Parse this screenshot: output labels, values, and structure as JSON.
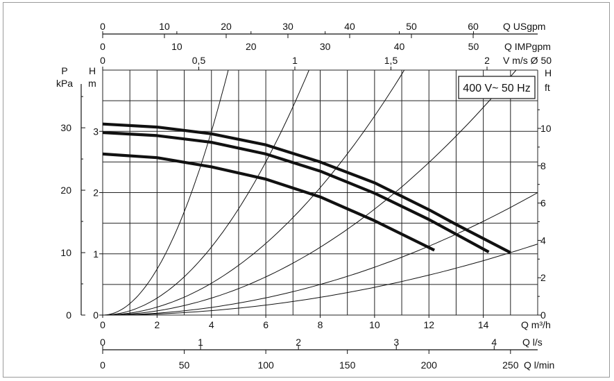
{
  "chart_data": {
    "type": "line",
    "title": "",
    "annotation": "400 V~ 50 Hz",
    "x_main": {
      "label": "Q m³/h",
      "range": [
        0,
        16
      ],
      "ticks": [
        0,
        2,
        4,
        6,
        8,
        10,
        12,
        14
      ]
    },
    "x_axes_bottom": [
      {
        "label": "Q l/s",
        "ticks": [
          0,
          1,
          2,
          3,
          4
        ]
      },
      {
        "label": "Q l/min",
        "ticks": [
          0,
          50,
          100,
          150,
          200,
          250
        ]
      }
    ],
    "x_axes_top": [
      {
        "label": "Q USgpm",
        "ticks": [
          0,
          10,
          20,
          30,
          40,
          50,
          60
        ]
      },
      {
        "label": "Q IMPgpm",
        "ticks": [
          0,
          10,
          20,
          30,
          40,
          50
        ]
      },
      {
        "label": "V m/s Ø 50",
        "ticks": [
          "0",
          "0,5",
          "1",
          "1,5",
          "2"
        ]
      }
    ],
    "y_main": {
      "label": "H",
      "unit": "m",
      "range": [
        0,
        4
      ],
      "ticks": [
        0,
        1,
        2,
        3
      ]
    },
    "y_pressure": {
      "label": "P",
      "unit": "kPa",
      "ticks": [
        0,
        10,
        20,
        30
      ]
    },
    "y_feet": {
      "label": "H",
      "unit": "ft",
      "ticks": [
        0,
        2,
        4,
        6,
        8,
        10
      ]
    },
    "grid": true,
    "series": [
      {
        "points": [
          [
            0,
            3.12
          ],
          [
            2,
            3.07
          ],
          [
            4,
            2.96
          ],
          [
            6,
            2.78
          ],
          [
            8,
            2.5
          ],
          [
            10,
            2.16
          ],
          [
            12,
            1.72
          ],
          [
            13,
            1.48
          ],
          [
            15,
            1.02
          ]
        ]
      },
      {
        "points": [
          [
            0,
            2.98
          ],
          [
            2,
            2.93
          ],
          [
            4,
            2.82
          ],
          [
            6,
            2.63
          ],
          [
            8,
            2.35
          ],
          [
            10,
            1.99
          ],
          [
            12,
            1.56
          ],
          [
            14.2,
            1.03
          ]
        ]
      },
      {
        "points": [
          [
            0,
            2.63
          ],
          [
            2,
            2.57
          ],
          [
            4,
            2.42
          ],
          [
            6,
            2.22
          ],
          [
            8,
            1.93
          ],
          [
            10,
            1.54
          ],
          [
            12.2,
            1.06
          ]
        ]
      }
    ],
    "system_curves": [
      {
        "through": [
          4,
          3.0
        ]
      },
      {
        "through": [
          6,
          2.5
        ]
      },
      {
        "through": [
          8,
          2.08
        ]
      },
      {
        "through": [
          10,
          1.73
        ]
      },
      {
        "through": [
          13,
          1.32
        ]
      },
      {
        "through": [
          15,
          1.02
        ]
      }
    ]
  }
}
